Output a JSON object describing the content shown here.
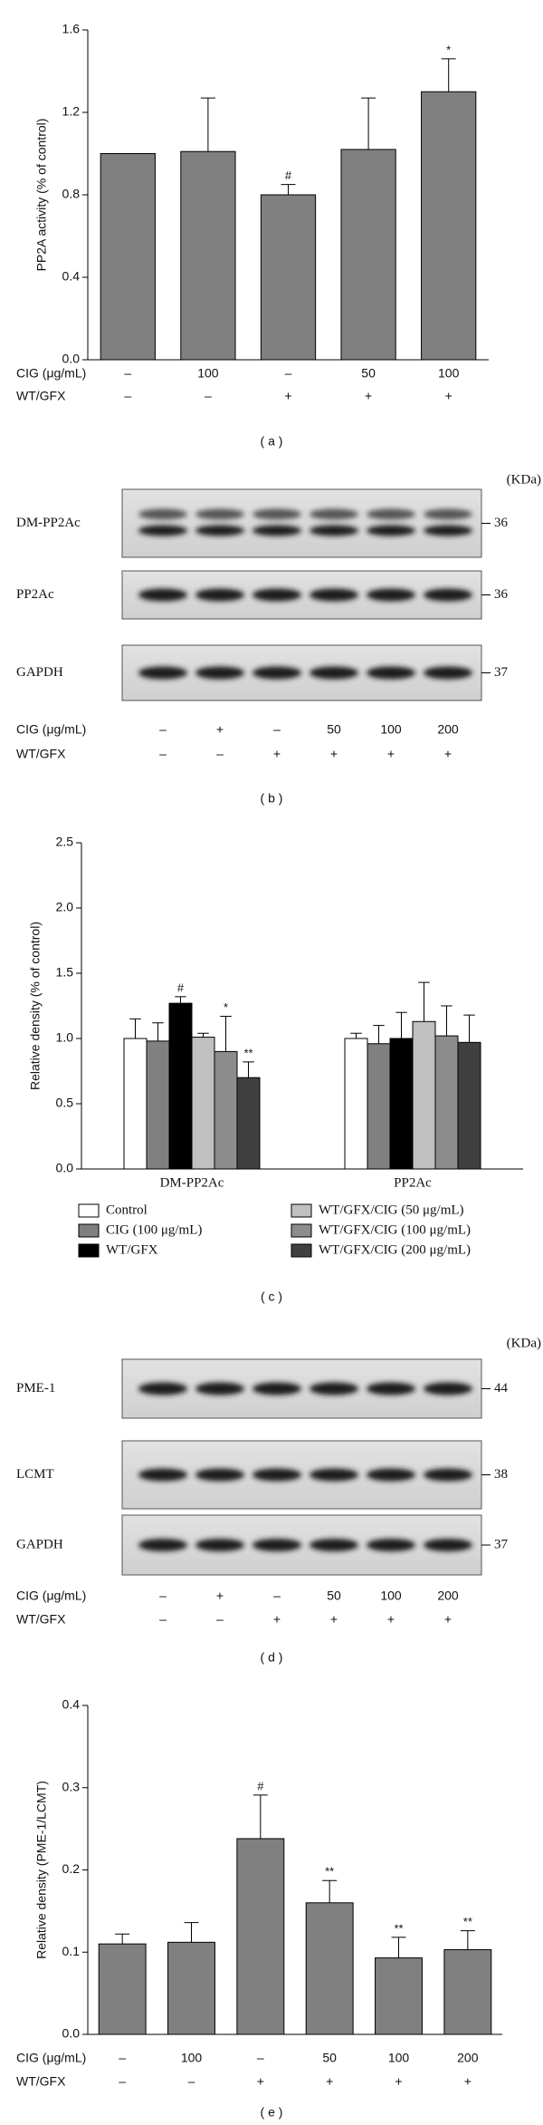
{
  "chart_data": [
    {
      "type": "bar",
      "ylabel": "PP2A activity (% of control)",
      "color": "#808080",
      "values": [
        1.0,
        1.01,
        0.8,
        1.02,
        1.3
      ],
      "errors": [
        0,
        0.26,
        0.05,
        0.25,
        0.16
      ],
      "annotations": [
        null,
        null,
        "#",
        null,
        "*"
      ],
      "ylim": [
        0,
        1.6
      ],
      "yticks": [
        {
          "value": 0,
          "label": "0.0"
        },
        0.4,
        0.8,
        1.2,
        1.6
      ],
      "conditions": [
        {
          "label": "CIG (μg/mL)",
          "values": [
            "–",
            "100",
            "–",
            "50",
            "100"
          ]
        },
        {
          "label": "WT/GFX",
          "values": [
            "–",
            "–",
            "+",
            "+",
            "+"
          ]
        }
      ]
    },
    {
      "type": "grouped-bar",
      "ylabel": "Relative density (% of control)",
      "categories": [
        "DM-PP2Ac",
        "PP2Ac"
      ],
      "series": [
        {
          "name": "Control",
          "color": "#ffffff",
          "values": [
            1.0,
            1.0
          ],
          "errors": [
            0.15,
            0.04
          ],
          "annotations": [
            null,
            null
          ]
        },
        {
          "name": "CIG (100 μg/mL)",
          "color": "#808080",
          "values": [
            0.98,
            0.96
          ],
          "errors": [
            0.14,
            0.14
          ],
          "annotations": [
            null,
            null
          ]
        },
        {
          "name": "WT/GFX",
          "color": "#000000",
          "values": [
            1.27,
            1.0
          ],
          "errors": [
            0.05,
            0.2
          ],
          "annotations": [
            "#",
            null
          ]
        },
        {
          "name": "WT/GFX/CIG (50 μg/mL)",
          "color": "#c0c0c0",
          "values": [
            1.01,
            1.13
          ],
          "errors": [
            0.03,
            0.3
          ],
          "annotations": [
            null,
            null
          ]
        },
        {
          "name": "WT/GFX/CIG (100 μg/mL)",
          "color": "#8c8c8c",
          "values": [
            0.9,
            1.02
          ],
          "errors": [
            0.27,
            0.23
          ],
          "annotations": [
            "*",
            null
          ]
        },
        {
          "name": "WT/GFX/CIG (200 μg/mL)",
          "color": "#404040",
          "values": [
            0.7,
            0.97
          ],
          "errors": [
            0.12,
            0.21
          ],
          "annotations": [
            "**",
            null
          ]
        }
      ],
      "ylim": [
        0,
        2.5
      ],
      "yticks": [
        {
          "value": 0,
          "label": "0.0"
        },
        0.5,
        {
          "value": 1,
          "label": "1.0"
        },
        1.5,
        {
          "value": 2,
          "label": "2.0"
        },
        2.5
      ]
    },
    {
      "type": "bar",
      "ylabel": "Relative density (PME-1/LCMT)",
      "color": "#808080",
      "values": [
        0.11,
        0.112,
        0.238,
        0.16,
        0.093,
        0.103
      ],
      "errors": [
        0.012,
        0.024,
        0.053,
        0.027,
        0.025,
        0.023
      ],
      "annotations": [
        null,
        null,
        "#",
        "**",
        "**",
        "**"
      ],
      "ylim": [
        0,
        0.4
      ],
      "yticks": [
        {
          "value": 0,
          "label": "0.0"
        },
        0.1,
        0.2,
        0.3,
        0.4
      ],
      "conditions": [
        {
          "label": "CIG (μg/mL)",
          "values": [
            "–",
            "100",
            "–",
            "50",
            "100",
            "200"
          ]
        },
        {
          "label": "WT/GFX",
          "values": [
            "–",
            "–",
            "+",
            "+",
            "+",
            "+"
          ]
        }
      ]
    }
  ],
  "blot_b": {
    "unit": "(KDa)",
    "rows": [
      {
        "label": "DM-PP2Ac",
        "mw": "36"
      },
      {
        "label": "PP2Ac",
        "mw": "36"
      },
      {
        "label": "GAPDH",
        "mw": "37"
      }
    ],
    "conditions": [
      {
        "label": "CIG (μg/mL)",
        "values": [
          "–",
          "+",
          "–",
          "50",
          "100",
          "200"
        ]
      },
      {
        "label": "WT/GFX",
        "values": [
          "–",
          "–",
          "+",
          "+",
          "+",
          "+"
        ]
      }
    ]
  },
  "blot_d": {
    "unit": "(KDa)",
    "rows": [
      {
        "label": "PME-1",
        "mw": "44"
      },
      {
        "label": "LCMT",
        "mw": "38"
      },
      {
        "label": "GAPDH",
        "mw": "37"
      }
    ],
    "conditions": [
      {
        "label": "CIG (μg/mL)",
        "values": [
          "–",
          "+",
          "–",
          "50",
          "100",
          "200"
        ]
      },
      {
        "label": "WT/GFX",
        "values": [
          "–",
          "–",
          "+",
          "+",
          "+",
          "+"
        ]
      }
    ]
  },
  "panel_labels": [
    "( a )",
    "( b )",
    "( c )",
    "( d )",
    "( e )"
  ]
}
